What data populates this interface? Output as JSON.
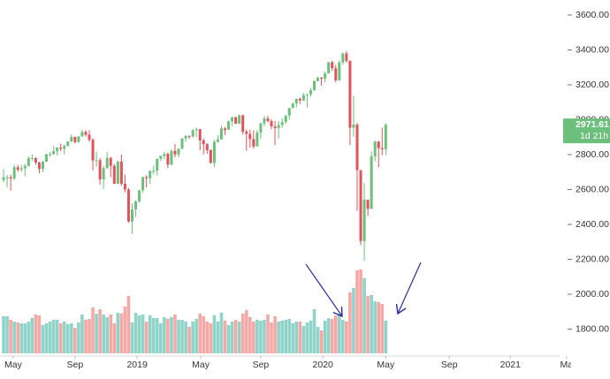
{
  "chart_data": {
    "type": "candlestick",
    "x": [
      0,
      1,
      2,
      3,
      4,
      5,
      6,
      7,
      8,
      9,
      10,
      11,
      12,
      13,
      14,
      15,
      16,
      17,
      18,
      19,
      20,
      21,
      22,
      23,
      24,
      25,
      26,
      27,
      28,
      29,
      30,
      31,
      32,
      33,
      34,
      35,
      36,
      37,
      38,
      39,
      40,
      41,
      42,
      43,
      44,
      45,
      46,
      47,
      48,
      49,
      50,
      51,
      52,
      53,
      54,
      55,
      56,
      57,
      58,
      59,
      60,
      61,
      62,
      63,
      64,
      65,
      66,
      67,
      68,
      69,
      70,
      71,
      72,
      73,
      74,
      75,
      76,
      77,
      78,
      79,
      80,
      81,
      82,
      83,
      84,
      85,
      86,
      87,
      88,
      89,
      90,
      91,
      92,
      93,
      94,
      95,
      96,
      97,
      98,
      99,
      100,
      101,
      102,
      103,
      104,
      105,
      106,
      107
    ],
    "open": [
      2655,
      2670,
      2670,
      2663,
      2728,
      2713,
      2721,
      2735,
      2779,
      2780,
      2755,
      2718,
      2760,
      2801,
      2802,
      2819,
      2840,
      2833,
      2850,
      2875,
      2902,
      2872,
      2904,
      2930,
      2914,
      2885,
      2767,
      2768,
      2658,
      2723,
      2781,
      2736,
      2633,
      2760,
      2633,
      2600,
      2417,
      2486,
      2532,
      2596,
      2671,
      2665,
      2707,
      2708,
      2776,
      2793,
      2804,
      2743,
      2822,
      2801,
      2834,
      2893,
      2907,
      2905,
      2940,
      2946,
      2881,
      2860,
      2826,
      2752,
      2873,
      2887,
      2950,
      2942,
      2990,
      3014,
      2977,
      3026,
      2932,
      2919,
      2889,
      2847,
      2926,
      2979,
      3007,
      2992,
      2962,
      2953,
      2970,
      2986,
      3023,
      3067,
      3093,
      3120,
      3110,
      3141,
      3146,
      3169,
      3221,
      3240,
      3235,
      3265,
      3330,
      3295,
      3226,
      3328,
      3380,
      3338,
      2954,
      2972,
      2711,
      2305,
      2541,
      2489,
      2790,
      2875,
      2837,
      2831
    ],
    "high": [
      2717,
      2683,
      2685,
      2742,
      2742,
      2742,
      2747,
      2791,
      2801,
      2785,
      2760,
      2763,
      2805,
      2816,
      2848,
      2842,
      2863,
      2857,
      2877,
      2916,
      2900,
      2906,
      2941,
      2940,
      2940,
      2894,
      2817,
      2780,
      2736,
      2815,
      2786,
      2746,
      2766,
      2800,
      2685,
      2608,
      2520,
      2538,
      2597,
      2675,
      2682,
      2709,
      2738,
      2777,
      2794,
      2816,
      2812,
      2830,
      2860,
      2836,
      2894,
      2911,
      2910,
      2946,
      2954,
      2946,
      2892,
      2865,
      2830,
      2884,
      2910,
      2964,
      2958,
      2996,
      3017,
      3018,
      3028,
      3027,
      2944,
      2943,
      2939,
      2940,
      2985,
      3021,
      3022,
      3002,
      2993,
      2993,
      3008,
      3027,
      3067,
      3098,
      3121,
      3127,
      3154,
      3147,
      3183,
      3226,
      3248,
      3246,
      3276,
      3330,
      3338,
      3314,
      3341,
      3385,
      3393,
      3340,
      3137,
      2982,
      2711,
      2637,
      2541,
      2819,
      2880,
      2878,
      2955,
      2980
    ],
    "low": [
      2640,
      2612,
      2594,
      2655,
      2701,
      2700,
      2676,
      2731,
      2764,
      2742,
      2692,
      2699,
      2758,
      2789,
      2800,
      2795,
      2820,
      2802,
      2848,
      2873,
      2864,
      2867,
      2903,
      2903,
      2874,
      2710,
      2730,
      2628,
      2604,
      2719,
      2670,
      2631,
      2631,
      2621,
      2583,
      2409,
      2346,
      2443,
      2524,
      2580,
      2612,
      2631,
      2687,
      2681,
      2764,
      2774,
      2723,
      2739,
      2785,
      2785,
      2830,
      2873,
      2891,
      2896,
      2900,
      2825,
      2801,
      2805,
      2750,
      2728,
      2868,
      2887,
      2913,
      2942,
      2963,
      2975,
      2977,
      2914,
      2822,
      2840,
      2834,
      2856,
      2891,
      2963,
      2985,
      2946,
      2855,
      2892,
      2952,
      2977,
      3000,
      3067,
      3072,
      3091,
      3107,
      3070,
      3133,
      3166,
      3221,
      3195,
      3214,
      3263,
      3281,
      3214,
      3223,
      3315,
      3327,
      2855,
      2902,
      2478,
      2281,
      2192,
      2447,
      2489,
      2761,
      2727,
      2797,
      2797
    ],
    "close": [
      2670,
      2670,
      2663,
      2728,
      2713,
      2721,
      2735,
      2779,
      2780,
      2755,
      2718,
      2760,
      2801,
      2802,
      2819,
      2840,
      2833,
      2850,
      2875,
      2902,
      2872,
      2904,
      2930,
      2914,
      2885,
      2767,
      2768,
      2658,
      2723,
      2781,
      2736,
      2633,
      2760,
      2633,
      2600,
      2417,
      2486,
      2532,
      2596,
      2671,
      2665,
      2707,
      2708,
      2776,
      2793,
      2804,
      2743,
      2822,
      2801,
      2834,
      2893,
      2907,
      2905,
      2940,
      2946,
      2881,
      2860,
      2826,
      2752,
      2873,
      2887,
      2950,
      2942,
      2990,
      3014,
      2977,
      3026,
      2932,
      2919,
      2889,
      2847,
      2926,
      2979,
      3007,
      2992,
      2962,
      2953,
      2970,
      2986,
      3023,
      3067,
      3093,
      3120,
      3110,
      3141,
      3146,
      3169,
      3221,
      3240,
      3235,
      3265,
      3330,
      3295,
      3226,
      3328,
      3380,
      3338,
      2954,
      2972,
      2711,
      2305,
      2541,
      2489,
      2790,
      2875,
      2837,
      2831,
      2971.61
    ],
    "volume": [
      4.2,
      4.2,
      3.8,
      3.6,
      3.5,
      3.4,
      3.4,
      3.6,
      4.0,
      4.4,
      4.3,
      3.2,
      3.4,
      3.6,
      3.8,
      3.8,
      3.4,
      3.6,
      3.3,
      3.4,
      2.9,
      3.5,
      4.4,
      3.8,
      3.9,
      5.2,
      4.5,
      5.0,
      4.4,
      4.1,
      4.4,
      3.4,
      4.6,
      4.5,
      5.3,
      6.5,
      3.5,
      4.6,
      4.3,
      4.4,
      3.6,
      4.3,
      4.0,
      4.0,
      3.4,
      4.1,
      3.9,
      4.1,
      4.4,
      3.8,
      3.8,
      3.6,
      3.0,
      3.6,
      3.9,
      4.5,
      4.2,
      3.6,
      3.4,
      4.3,
      3.6,
      4.6,
      3.7,
      3.2,
      3.6,
      3.8,
      3.6,
      4.5,
      4.9,
      4.1,
      3.6,
      3.8,
      3.7,
      3.8,
      4.4,
      3.5,
      4.2,
      3.6,
      3.7,
      3.8,
      3.9,
      3.4,
      3.6,
      3.6,
      3.1,
      3.5,
      3.7,
      5.0,
      3.0,
      2.6,
      3.7,
      4.0,
      3.9,
      4.3,
      4.5,
      3.8,
      3.6,
      6.9,
      7.4,
      9.4,
      9.5,
      8.5,
      6.5,
      6.6,
      5.9,
      5.8,
      5.6,
      3.7
    ],
    "xlim": [
      -1,
      160
    ],
    "xticks": [
      {
        "value": 2.7,
        "label": "May"
      },
      {
        "value": 20,
        "label": "Sep"
      },
      {
        "value": 37.4,
        "label": "2019"
      },
      {
        "value": 55.2,
        "label": "May"
      },
      {
        "value": 72,
        "label": "Sep"
      },
      {
        "value": 89.4,
        "label": "2020"
      },
      {
        "value": 107,
        "label": "May"
      },
      {
        "value": 124.8,
        "label": "Sep"
      },
      {
        "value": 141.9,
        "label": "2021"
      },
      {
        "value": 157.6,
        "label": "Ma"
      }
    ],
    "ylim": [
      1661,
      3686
    ],
    "yticks": [
      {
        "value": 1800,
        "label": "1800.00"
      },
      {
        "value": 2000,
        "label": "2000.00"
      },
      {
        "value": 2200,
        "label": "2200.00"
      },
      {
        "value": 2400,
        "label": "2400.00"
      },
      {
        "value": 2600,
        "label": "2600.00"
      },
      {
        "value": 2800,
        "label": "2800.00"
      },
      {
        "value": 3000,
        "label": "3000.00"
      },
      {
        "value": 3200,
        "label": "3200.00"
      },
      {
        "value": 3400,
        "label": "3400.00"
      },
      {
        "value": 3600,
        "label": "3600.00"
      }
    ],
    "vlim": [
      0,
      10
    ],
    "up_color": "#6cc07c",
    "down_color": "#e0535b",
    "volume_up_color": "#8fd3c9",
    "volume_down_color": "#f6a8a6",
    "countdown": "1d 21h"
  }
}
